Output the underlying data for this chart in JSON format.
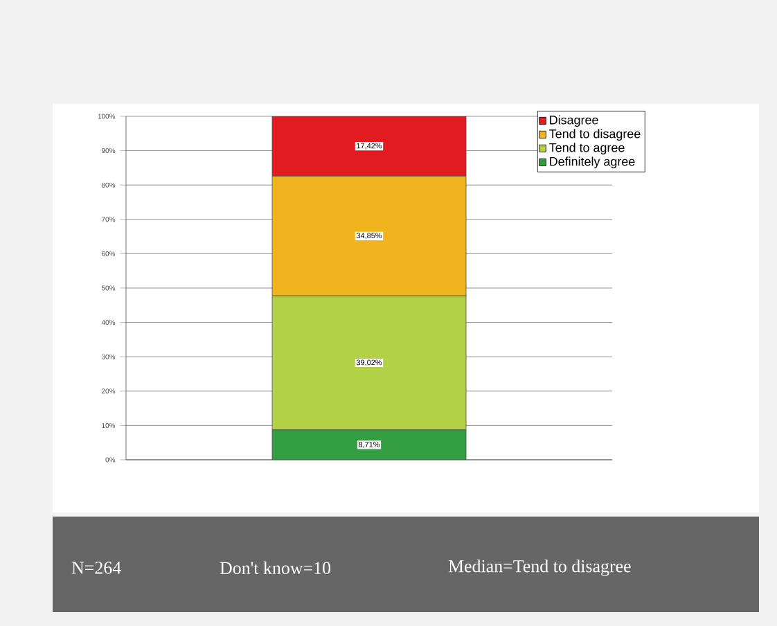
{
  "chart_data": {
    "type": "bar",
    "stacked": true,
    "categories": [
      null
    ],
    "series": [
      {
        "name": "Definitely agree",
        "color": "#329e41",
        "values": [
          8.71
        ],
        "value_labels": [
          "8,71%"
        ]
      },
      {
        "name": "Tend to agree",
        "color": "#b2d147",
        "values": [
          39.02
        ],
        "value_labels": [
          "39,02%"
        ]
      },
      {
        "name": "Tend to disagree",
        "color": "#f2b41c",
        "values": [
          34.85
        ],
        "value_labels": [
          "34,85%"
        ]
      },
      {
        "name": "Disagree",
        "color": "#e21b23",
        "values": [
          17.42
        ],
        "value_labels": [
          "17,42%"
        ]
      }
    ],
    "ylim": [
      0,
      100
    ],
    "yticks": [
      {
        "value": 0,
        "label": "0%"
      },
      {
        "value": 10,
        "label": "10%"
      },
      {
        "value": 20,
        "label": "20%"
      },
      {
        "value": 30,
        "label": "30%"
      },
      {
        "value": 40,
        "label": "40%"
      },
      {
        "value": 50,
        "label": "50%"
      },
      {
        "value": 60,
        "label": "60%"
      },
      {
        "value": 70,
        "label": "70%"
      },
      {
        "value": 80,
        "label": "80%"
      },
      {
        "value": 90,
        "label": "90%"
      },
      {
        "value": 100,
        "label": "100%"
      }
    ],
    "grid": "y",
    "legend": "top right",
    "annotations": [
      "N=264",
      "Don't know=10",
      "Median=Tend to disagree"
    ]
  }
}
